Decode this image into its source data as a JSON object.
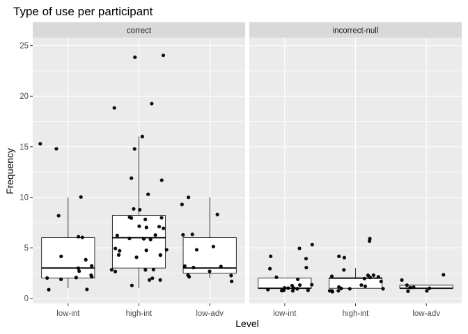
{
  "chart_data": {
    "type": "boxplot",
    "title": "Type of use per participant",
    "xlabel": "Level",
    "ylabel": "Frequency",
    "ylim": [
      -0.5,
      25.8
    ],
    "yticks": [
      0,
      5,
      10,
      15,
      20,
      25
    ],
    "categories": [
      "low-int",
      "high-int",
      "low-adv"
    ],
    "grid": true,
    "legend": "none",
    "colors": {
      "panel_bg": "#ebebeb",
      "strip_bg": "#d9d9d9",
      "grid": "#ffffff",
      "box_fill": "#ffffff",
      "box_line": "#000000",
      "point": "#000000"
    },
    "panels": [
      {
        "name": "correct",
        "boxes": [
          {
            "category": "low-int",
            "min": 1,
            "q1": 2,
            "median": 3,
            "q3": 6,
            "max": 10
          },
          {
            "category": "high-int",
            "min": 1,
            "q1": 3,
            "median": 6,
            "q3": 8.2,
            "max": 16
          },
          {
            "category": "low-adv",
            "min": 2,
            "q1": 2.5,
            "median": 3,
            "q3": 6,
            "max": 10
          }
        ],
        "points": [
          {
            "category": "low-int",
            "values": [
              15,
              15,
              10,
              8,
              6,
              6,
              4,
              4,
              3,
              3,
              3,
              2,
              2,
              2,
              2,
              2,
              1,
              1
            ]
          },
          {
            "category": "high-int",
            "values": [
              24,
              24,
              19,
              19,
              16,
              15,
              12,
              12,
              10,
              9,
              9,
              8,
              8,
              8,
              8,
              7,
              7,
              7,
              7,
              6,
              6,
              6,
              6,
              6,
              5,
              5,
              5,
              5,
              4,
              4,
              4,
              4,
              3,
              3,
              3,
              3,
              2,
              2,
              2,
              1
            ]
          },
          {
            "category": "low-adv",
            "values": [
              10,
              9,
              8,
              6,
              6,
              5,
              5,
              3,
              3,
              3,
              3,
              2,
              2,
              2,
              2
            ]
          }
        ]
      },
      {
        "name": "incorrect-null",
        "boxes": [
          {
            "category": "low-int",
            "min": 1,
            "q1": 1,
            "median": 1,
            "q3": 2,
            "max": 2
          },
          {
            "category": "high-int",
            "min": 1,
            "q1": 1,
            "median": 2,
            "q3": 2,
            "max": 3
          },
          {
            "category": "low-adv",
            "min": 1,
            "q1": 1,
            "median": 1,
            "q3": 1.3,
            "max": 1.3
          }
        ],
        "points": [
          {
            "category": "low-int",
            "values": [
              5,
              5,
              4,
              4,
              3,
              3,
              2,
              2,
              1,
              1,
              1,
              1,
              1,
              1,
              1,
              1,
              1,
              1,
              1,
              1
            ]
          },
          {
            "category": "high-int",
            "values": [
              6,
              6,
              4,
              4,
              3,
              2,
              2,
              2,
              2,
              2,
              2,
              2,
              1,
              1,
              1,
              1,
              1,
              1,
              1,
              1,
              1,
              1
            ]
          },
          {
            "category": "low-adv",
            "values": [
              2,
              2,
              1,
              1,
              1,
              1,
              1,
              1
            ]
          }
        ]
      }
    ]
  }
}
